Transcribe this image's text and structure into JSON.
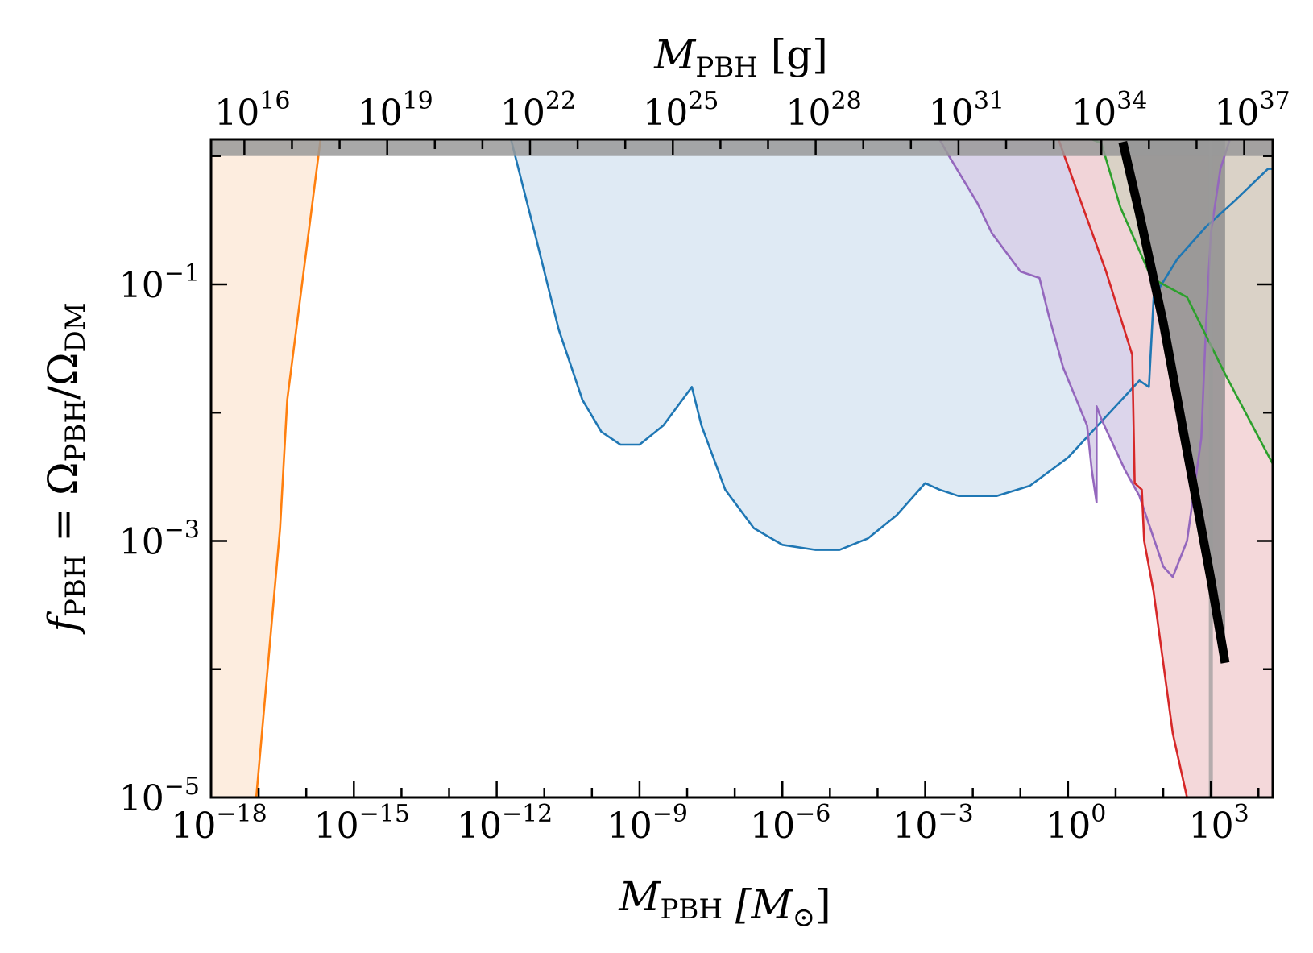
{
  "chart_data": {
    "type": "area",
    "xlabel": {
      "main": "M",
      "sub": "PBH",
      "unit": "[M",
      "unit_sub": "⊙",
      "close": "]"
    },
    "x2label": {
      "main": "M",
      "sub": "PBH",
      "unit": "[g]"
    },
    "ylabel": {
      "f": "f",
      "f_sub": "PBH",
      "eq": " = Ω",
      "num_sub": "PBH",
      "slash": "/Ω",
      "den_sub": "DM"
    },
    "x_scale": "log",
    "y_scale": "log",
    "xlim_log10": [
      -18,
      4.3
    ],
    "ylim_log10": [
      -5,
      0.13
    ],
    "x_ticks": [
      {
        "exp": -18,
        "base": "10",
        "sup": "−18"
      },
      {
        "exp": -15,
        "base": "10",
        "sup": "−15"
      },
      {
        "exp": -12,
        "base": "10",
        "sup": "−12"
      },
      {
        "exp": -9,
        "base": "10",
        "sup": "−9"
      },
      {
        "exp": -6,
        "base": "10",
        "sup": "−6"
      },
      {
        "exp": -3,
        "base": "10",
        "sup": "−3"
      },
      {
        "exp": 0,
        "base": "10",
        "sup": "0"
      },
      {
        "exp": 3,
        "base": "10",
        "sup": "3"
      }
    ],
    "x2_ticks": [
      {
        "exp": 16,
        "base": "10",
        "sup": "16"
      },
      {
        "exp": 19,
        "base": "10",
        "sup": "19"
      },
      {
        "exp": 22,
        "base": "10",
        "sup": "22"
      },
      {
        "exp": 25,
        "base": "10",
        "sup": "25"
      },
      {
        "exp": 28,
        "base": "10",
        "sup": "28"
      },
      {
        "exp": 31,
        "base": "10",
        "sup": "31"
      },
      {
        "exp": 34,
        "base": "10",
        "sup": "34"
      },
      {
        "exp": 37,
        "base": "10",
        "sup": "37"
      }
    ],
    "y_ticks": [
      {
        "exp": -5,
        "base": "10",
        "sup": "−5"
      },
      {
        "exp": -3,
        "base": "10",
        "sup": "−3"
      },
      {
        "exp": -1,
        "base": "10",
        "sup": "−1"
      }
    ],
    "grams_per_msun_log10": 33.3,
    "series": [
      {
        "color": "#ff7f0e",
        "fill": "#fdebdc",
        "fill_side": "left",
        "points": [
          [
            -17.05,
            -5
          ],
          [
            -16.55,
            -2.9
          ],
          [
            -16.4,
            -1.9
          ],
          [
            -15.7,
            0.13
          ]
        ]
      },
      {
        "color": "#1f77b4",
        "fill": "#dce8f3",
        "fill_side": "above",
        "points": [
          [
            -11.7,
            0.13
          ],
          [
            -11.2,
            -0.6
          ],
          [
            -10.7,
            -1.35
          ],
          [
            -10.2,
            -1.9
          ],
          [
            -9.8,
            -2.15
          ],
          [
            -9.4,
            -2.25
          ],
          [
            -9,
            -2.25
          ],
          [
            -8.5,
            -2.1
          ],
          [
            -7.9,
            -1.8
          ],
          [
            -7.7,
            -2.1
          ],
          [
            -7.2,
            -2.6
          ],
          [
            -6.6,
            -2.9
          ],
          [
            -6,
            -3.03
          ],
          [
            -5.3,
            -3.07
          ],
          [
            -4.8,
            -3.07
          ],
          [
            -4.2,
            -2.98
          ],
          [
            -3.6,
            -2.8
          ],
          [
            -3,
            -2.55
          ],
          [
            -2.7,
            -2.6
          ],
          [
            -2.3,
            -2.65
          ],
          [
            -1.5,
            -2.65
          ],
          [
            -0.8,
            -2.57
          ],
          [
            0,
            -2.35
          ],
          [
            0.5,
            -2.15
          ],
          [
            1,
            -1.95
          ],
          [
            1.5,
            -1.75
          ],
          [
            1.7,
            -1.8
          ],
          [
            1.8,
            -1.1
          ],
          [
            2.3,
            -0.8
          ],
          [
            2.9,
            -0.55
          ],
          [
            3.5,
            -0.35
          ],
          [
            4.2,
            -0.1
          ],
          [
            4.3,
            -0.1
          ]
        ]
      },
      {
        "color": "#9467bd",
        "fill": "#d8d0e9",
        "fill_side": "above",
        "points": [
          [
            -2.7,
            0.13
          ],
          [
            -2.5,
            0
          ],
          [
            -1.9,
            -0.37
          ],
          [
            -1.6,
            -0.6
          ],
          [
            -1,
            -0.9
          ],
          [
            -0.6,
            -0.95
          ],
          [
            -0.4,
            -1.25
          ],
          [
            -0.1,
            -1.65
          ],
          [
            0.4,
            -2.1
          ],
          [
            0.5,
            -2.45
          ],
          [
            0.6,
            -2.7
          ],
          [
            0.6,
            -1.95
          ],
          [
            0.7,
            -2.05
          ],
          [
            1.2,
            -2.45
          ],
          [
            1.5,
            -2.65
          ],
          [
            2,
            -3.2
          ],
          [
            2.2,
            -3.28
          ],
          [
            2.5,
            -3
          ],
          [
            2.8,
            -2.2
          ],
          [
            2.9,
            -1.3
          ],
          [
            3,
            -0.6
          ],
          [
            3.2,
            -0.1
          ],
          [
            3.4,
            0.13
          ]
        ]
      },
      {
        "color": "#d62728",
        "fill": "#f3d4d6",
        "fill_side": "right",
        "points": [
          [
            -0.2,
            0.13
          ],
          [
            0.8,
            -0.9
          ],
          [
            1.35,
            -1.55
          ],
          [
            1.4,
            -2.55
          ],
          [
            1.55,
            -2.6
          ],
          [
            1.6,
            -3
          ],
          [
            1.8,
            -3.4
          ],
          [
            2.2,
            -4.5
          ],
          [
            2.5,
            -5
          ]
        ]
      },
      {
        "color": "#2ca02c",
        "fill": "#d7d2c4",
        "fill_side": "right",
        "points": [
          [
            0.5,
            0.13
          ],
          [
            0.7,
            0.1
          ],
          [
            1.1,
            -0.4
          ],
          [
            1.75,
            -0.95
          ],
          [
            2.5,
            -1.1
          ],
          [
            3.3,
            -1.7
          ],
          [
            4.3,
            -2.4
          ]
        ]
      },
      {
        "color": "#000000",
        "fill": "#8f8f8f",
        "fill_side": "above",
        "points": [
          [
            1.15,
            0.11
          ],
          [
            1.5,
            -0.45
          ],
          [
            2,
            -1.3
          ],
          [
            2.5,
            -2.3
          ],
          [
            3,
            -3.3
          ],
          [
            3.3,
            -3.95
          ]
        ]
      }
    ],
    "top_band": {
      "color": "#999999",
      "y_from_log10": 0,
      "y_to_log10": 0.13
    },
    "vertical_band": {
      "color": "#9a9a9a",
      "x_log10": 3
    }
  }
}
